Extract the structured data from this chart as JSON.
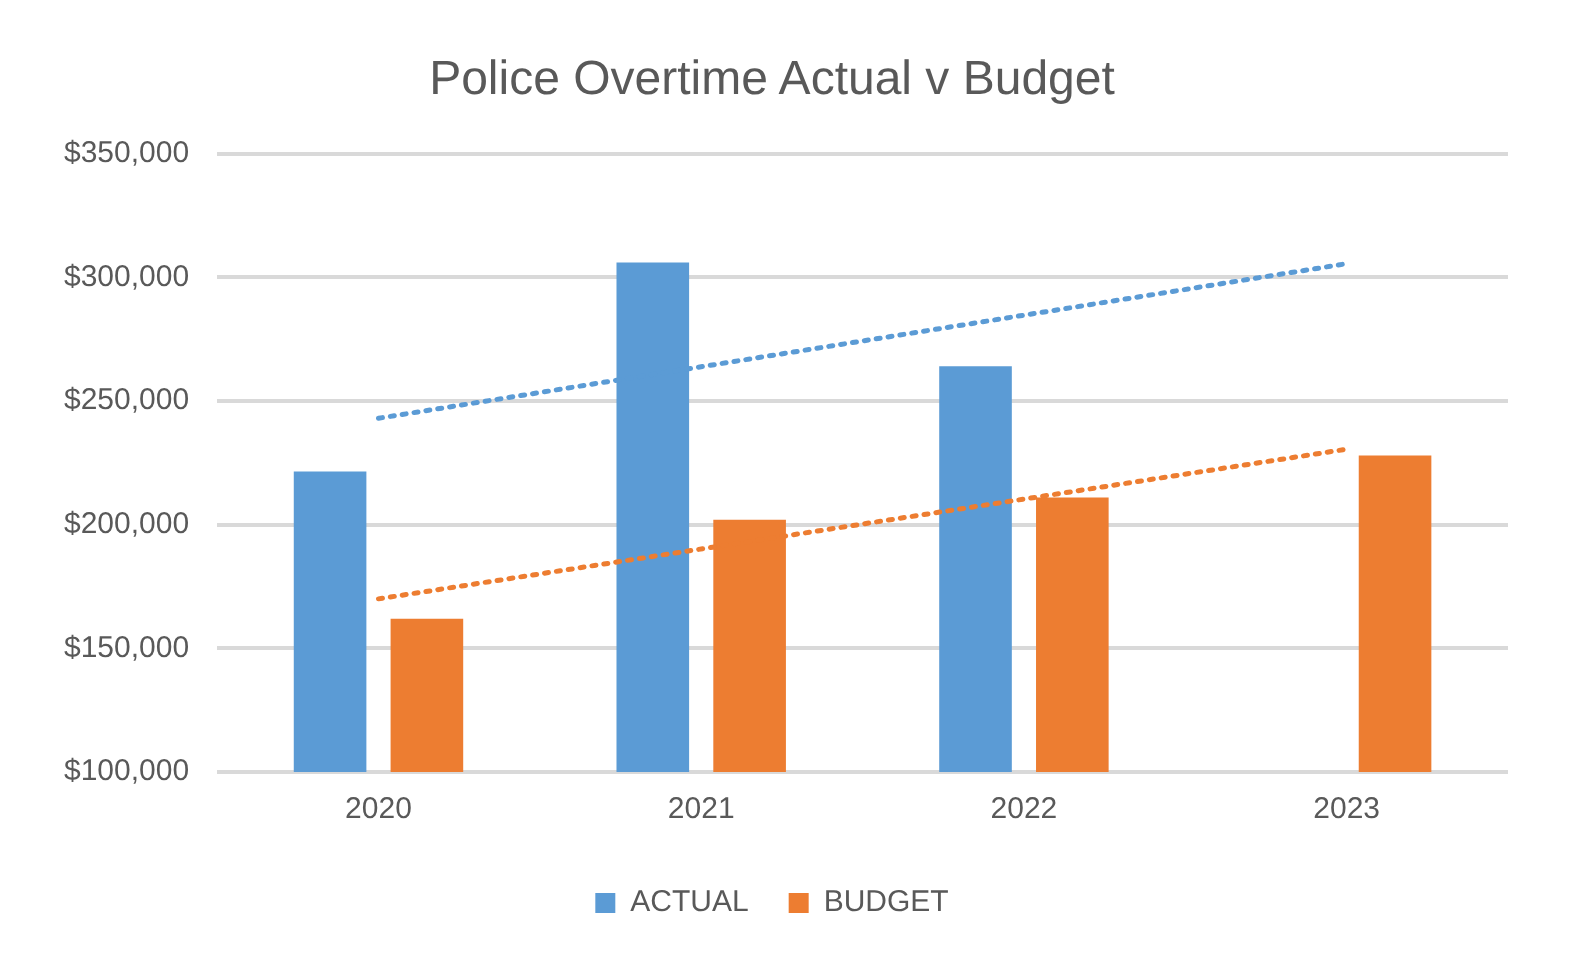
{
  "chart_data": {
    "type": "bar",
    "title": "Police Overtime Actual v Budget",
    "categories": [
      "2020",
      "2021",
      "2022",
      "2023"
    ],
    "series": [
      {
        "name": "ACTUAL",
        "color": "#5b9bd5",
        "values": [
          221500,
          306000,
          264000,
          null
        ]
      },
      {
        "name": "BUDGET",
        "color": "#ed7d31",
        "values": [
          162000,
          202000,
          211000,
          228000
        ]
      },
      {
        "type": "line",
        "color": "#5b9bd5",
        "line_style": "dotted",
        "values": [
          243000,
          null,
          null,
          305500
        ]
      },
      {
        "type": "line",
        "color": "#ed7d31",
        "line_style": "dotted",
        "values": [
          170000,
          null,
          null,
          230500
        ]
      }
    ],
    "ylim": [
      100000,
      350000
    ],
    "yticks": [
      {
        "value": 100000,
        "label": "$100,000"
      },
      {
        "value": 150000,
        "label": "$150,000"
      },
      {
        "value": 200000,
        "label": "$200,000"
      },
      {
        "value": 250000,
        "label": "$250,000"
      },
      {
        "value": 300000,
        "label": "$300,000"
      },
      {
        "value": 350000,
        "label": "$350,000"
      }
    ],
    "grid": "y",
    "legend": "bottom"
  }
}
